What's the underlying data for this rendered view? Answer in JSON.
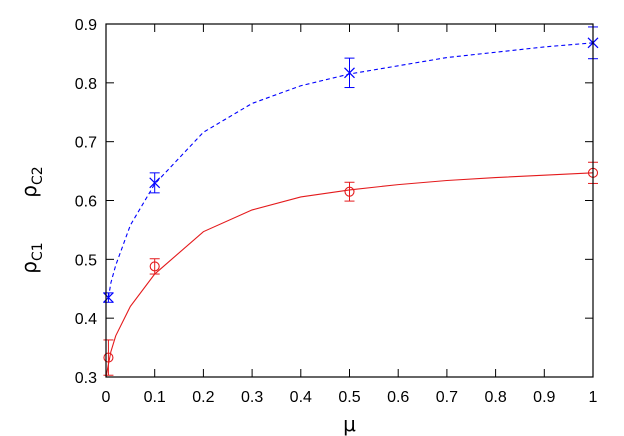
{
  "chart_data": {
    "type": "scatter",
    "xlabel": "μ",
    "ylabel_parts": [
      {
        "symbol": "ρ",
        "subscript": "C1"
      },
      {
        "symbol": "ρ",
        "subscript": "C2"
      }
    ],
    "xlim": [
      0,
      1
    ],
    "ylim": [
      0.3,
      0.9
    ],
    "x_ticks": [
      0,
      0.1,
      0.2,
      0.3,
      0.4,
      0.5,
      0.6,
      0.7,
      0.8,
      0.9,
      1
    ],
    "x_tick_labels": [
      "0",
      "0.1",
      "0.2",
      "0.3",
      "0.4",
      "0.5",
      "0.6",
      "0.7",
      "0.8",
      "0.9",
      "1"
    ],
    "y_ticks": [
      0.3,
      0.4,
      0.5,
      0.6,
      0.7,
      0.8,
      0.9
    ],
    "y_tick_labels": [
      "0.3",
      "0.4",
      "0.5",
      "0.6",
      "0.7",
      "0.8",
      "0.9"
    ],
    "grid": false,
    "series": [
      {
        "marker": "circle",
        "color": "#e41a1c",
        "line_style": "solid",
        "x": [
          0.005,
          0.1,
          0.5,
          1.0
        ],
        "y": [
          0.333,
          0.488,
          0.615,
          0.647
        ],
        "yerr": [
          0.03,
          0.013,
          0.016,
          0.018
        ],
        "fit_curve": {
          "x": [
            0.0,
            0.01,
            0.02,
            0.05,
            0.1,
            0.2,
            0.3,
            0.4,
            0.5,
            0.6,
            0.7,
            0.8,
            0.9,
            1.0
          ],
          "y": [
            0.3,
            0.343,
            0.37,
            0.42,
            0.475,
            0.547,
            0.584,
            0.606,
            0.618,
            0.627,
            0.634,
            0.639,
            0.643,
            0.647
          ]
        }
      },
      {
        "marker": "x",
        "color": "#0000ff",
        "line_style": "dashed",
        "x": [
          0.005,
          0.1,
          0.5,
          1.0
        ],
        "y": [
          0.435,
          0.63,
          0.817,
          0.868
        ],
        "yerr": [
          0.008,
          0.017,
          0.025,
          0.027
        ],
        "fit_curve": {
          "x": [
            0.005,
            0.01,
            0.02,
            0.05,
            0.1,
            0.2,
            0.3,
            0.4,
            0.5,
            0.6,
            0.7,
            0.8,
            0.9,
            1.0
          ],
          "y": [
            0.435,
            0.46,
            0.49,
            0.558,
            0.628,
            0.716,
            0.765,
            0.795,
            0.815,
            0.829,
            0.843,
            0.852,
            0.861,
            0.868
          ]
        }
      }
    ]
  }
}
